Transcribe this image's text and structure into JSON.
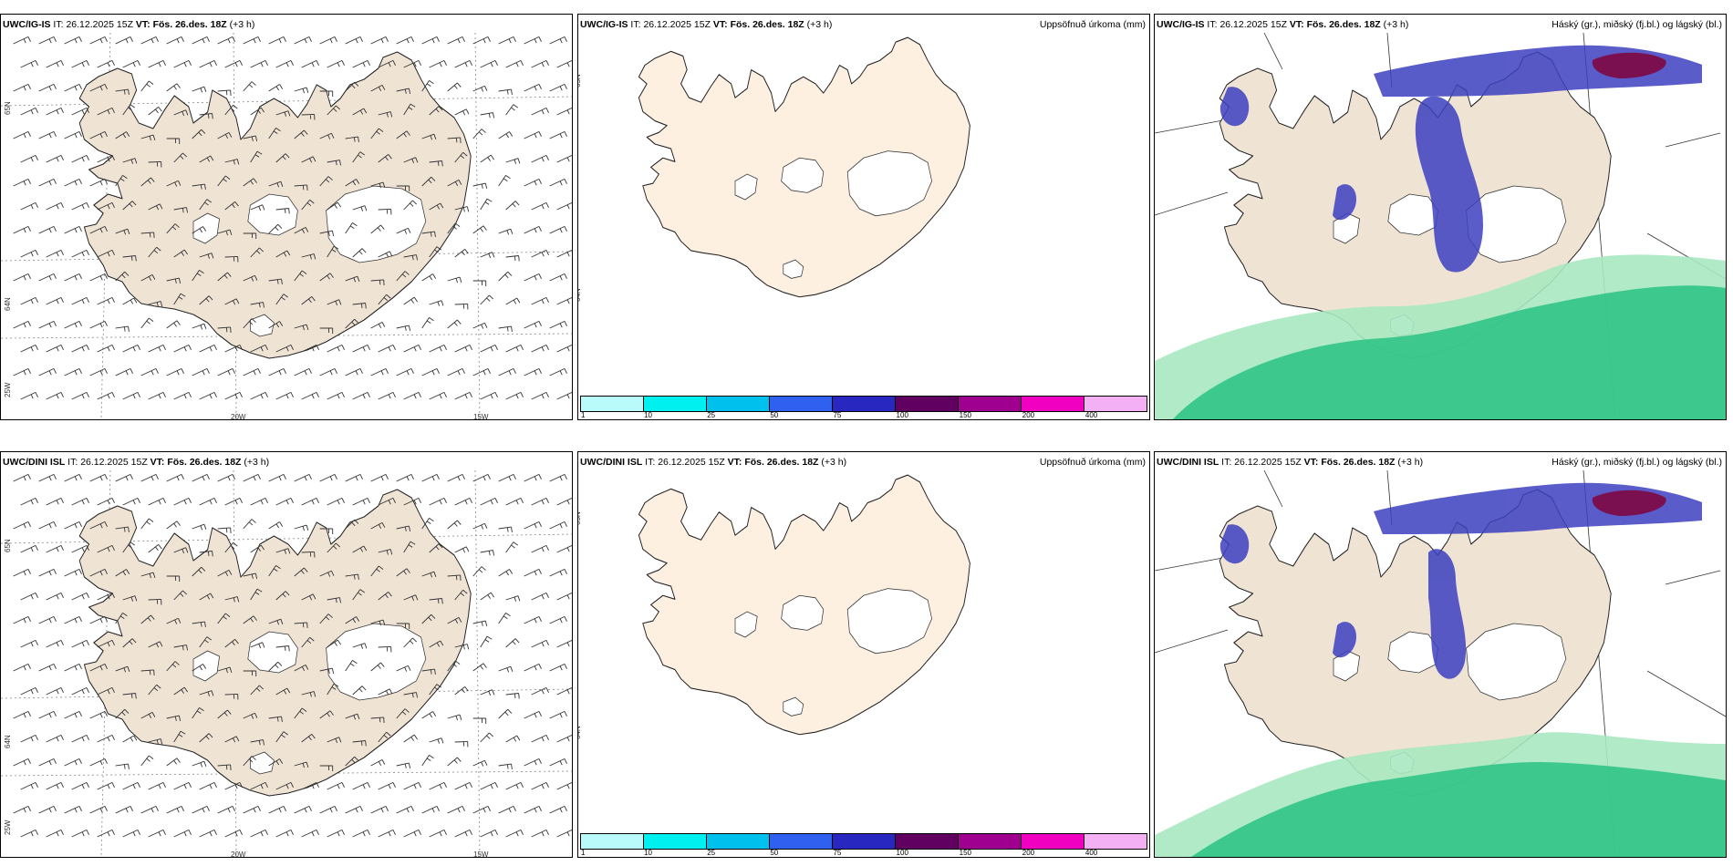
{
  "rows": [
    {
      "panels": [
        {
          "model": "UWC/IG-IS",
          "it_label": "IT:",
          "it": "26.12.2025 15Z",
          "vt_label": "VT:",
          "vt": "Fös. 26.des. 18Z",
          "offset": "(+3 h)",
          "right_title": ""
        },
        {
          "model": "UWC/IG-IS",
          "it_label": "IT:",
          "it": "26.12.2025 15Z",
          "vt_label": "VT:",
          "vt": "Fös. 26.des. 18Z",
          "offset": "(+3 h)",
          "right_title": "Uppsöfnuð úrkoma (mm)"
        },
        {
          "model": "UWC/IG-IS",
          "it_label": "IT:",
          "it": "26.12.2025 15Z",
          "vt_label": "VT:",
          "vt": "Fös. 26.des. 18Z",
          "offset": "(+3 h)",
          "right_title": "Háský (gr.), miðský (fj.bl.) og lágský (bl.)"
        }
      ]
    },
    {
      "panels": [
        {
          "model": "UWC/DINI ISL",
          "it_label": "IT:",
          "it": "26.12.2025 15Z",
          "vt_label": "VT:",
          "vt": "Fös. 26.des. 18Z",
          "offset": "(+3 h)",
          "right_title": ""
        },
        {
          "model": "UWC/DINI ISL",
          "it_label": "IT:",
          "it": "26.12.2025 15Z",
          "vt_label": "VT:",
          "vt": "Fös. 26.des. 18Z",
          "offset": "(+3 h)",
          "right_title": "Uppsöfnuð úrkoma (mm)"
        },
        {
          "model": "UWC/DINI ISL",
          "it_label": "IT:",
          "it": "26.12.2025 15Z",
          "vt_label": "VT:",
          "vt": "Fös. 26.des. 18Z",
          "offset": "(+3 h)",
          "right_title": "Háský (gr.), miðský (fj.bl.) og lágský (bl.)"
        }
      ]
    }
  ],
  "grid_labels": {
    "lon_20": "20W",
    "lon_15": "15W",
    "lat_65": "65N",
    "lat_64": "64N",
    "lat_25": "25W"
  },
  "legend": {
    "ticks": [
      "1",
      "10",
      "25",
      "50",
      "75",
      "100",
      "150",
      "200",
      "400"
    ],
    "colors": [
      "#b9fbfb",
      "#00f0f0",
      "#00c0ee",
      "#3060f0",
      "#2828c0",
      "#600060",
      "#a00090",
      "#f000c0",
      "#f4b0f4"
    ]
  },
  "colors": {
    "land_wind": "#efe3d4",
    "land_precip": "#fdf0e1",
    "cloud_high": "#3c40c0",
    "cloud_top": "#7a1050",
    "cloud_low": "#20c080"
  }
}
